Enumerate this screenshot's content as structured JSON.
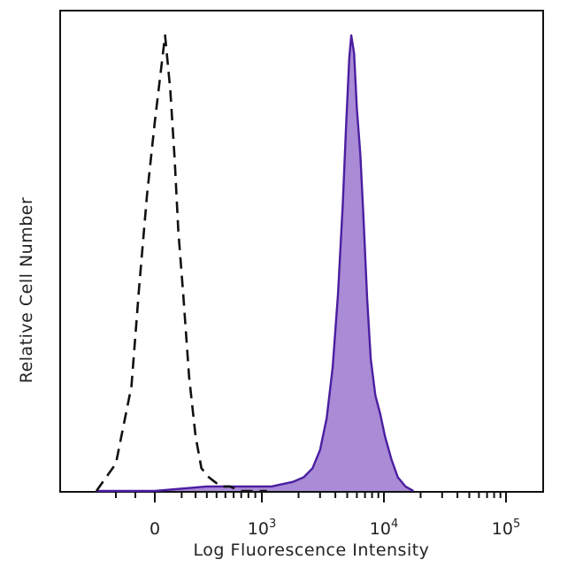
{
  "chart_data": {
    "type": "area",
    "title": "",
    "xlabel": "Log Fluorescence Intensity",
    "ylabel": "Relative Cell Number",
    "x_scale": "biexponential",
    "xlim": [
      -200,
      200000
    ],
    "ylim": [
      0,
      100
    ],
    "x_tick_labels": [
      {
        "value": 0,
        "base": "0",
        "exp": ""
      },
      {
        "value": 1000,
        "base": "10",
        "exp": "3"
      },
      {
        "value": 10000,
        "base": "10",
        "exp": "4"
      },
      {
        "value": 100000,
        "base": "10",
        "exp": "5"
      }
    ],
    "grid": false,
    "colors": {
      "stained_fill": "#a98bd6",
      "stained_line": "#4b1ea0",
      "control_line": "#111111",
      "axis": "#111111"
    },
    "series": [
      {
        "style": "dashed-outline",
        "x": [
          -150,
          -100,
          -60,
          -40,
          -20,
          0,
          20,
          40,
          60,
          80,
          110,
          150,
          200,
          250,
          320,
          380,
          450,
          550,
          700,
          900,
          1100
        ],
        "y": [
          0,
          6,
          23,
          45,
          65,
          81,
          100,
          88,
          73,
          57,
          43,
          25,
          12,
          5,
          3,
          2,
          1,
          1,
          0,
          0,
          0
        ]
      },
      {
        "style": "filled-solid",
        "x": [
          -150,
          0,
          300,
          700,
          1200,
          1800,
          2200,
          2600,
          3000,
          3400,
          3800,
          4200,
          4600,
          4900,
          5200,
          5400,
          5700,
          6000,
          6400,
          6800,
          7300,
          7800,
          8500,
          9300,
          10200,
          11500,
          13000,
          15000,
          17500
        ],
        "y": [
          0,
          0,
          1,
          1,
          1,
          2,
          3,
          5,
          9,
          16,
          27,
          43,
          63,
          80,
          95,
          100,
          96,
          84,
          74,
          60,
          42,
          29,
          21,
          17,
          12,
          7,
          3,
          1,
          0
        ]
      }
    ]
  }
}
